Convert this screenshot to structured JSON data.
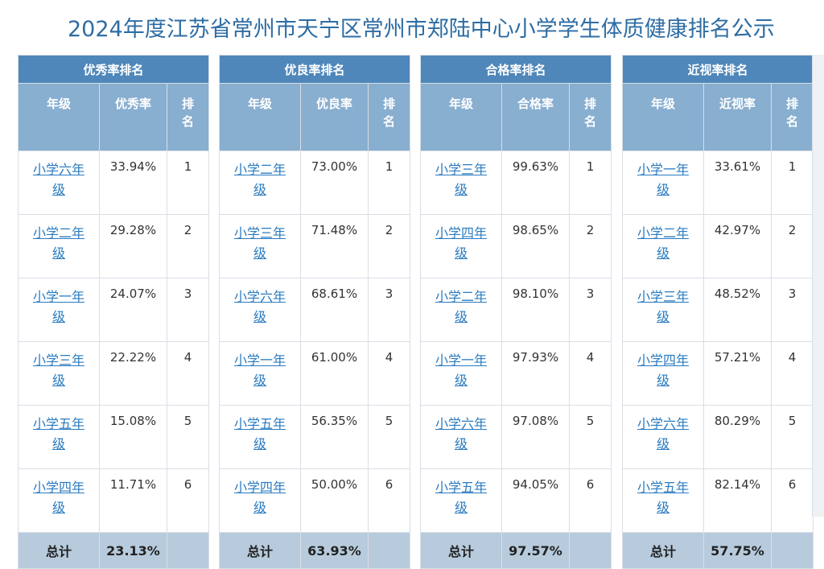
{
  "page_title": "2024年度江苏省常州市天宁区常州市郑陆中心小学学生体质健康排名公示",
  "panels": [
    {
      "title": "优秀率排名",
      "headers": [
        "年级",
        "优秀率",
        "排名"
      ],
      "rows": [
        {
          "grade": "小学六年级",
          "rate": "33.94%",
          "rank": "1"
        },
        {
          "grade": "小学二年级",
          "rate": "29.28%",
          "rank": "2"
        },
        {
          "grade": "小学一年级",
          "rate": "24.07%",
          "rank": "3"
        },
        {
          "grade": "小学三年级",
          "rate": "22.22%",
          "rank": "4"
        },
        {
          "grade": "小学五年级",
          "rate": "15.08%",
          "rank": "5"
        },
        {
          "grade": "小学四年级",
          "rate": "11.71%",
          "rank": "6"
        }
      ],
      "total_label": "总计",
      "total_value": "23.13%"
    },
    {
      "title": "优良率排名",
      "headers": [
        "年级",
        "优良率",
        "排名"
      ],
      "rows": [
        {
          "grade": "小学二年级",
          "rate": "73.00%",
          "rank": "1"
        },
        {
          "grade": "小学三年级",
          "rate": "71.48%",
          "rank": "2"
        },
        {
          "grade": "小学六年级",
          "rate": "68.61%",
          "rank": "3"
        },
        {
          "grade": "小学一年级",
          "rate": "61.00%",
          "rank": "4"
        },
        {
          "grade": "小学五年级",
          "rate": "56.35%",
          "rank": "5"
        },
        {
          "grade": "小学四年级",
          "rate": "50.00%",
          "rank": "6"
        }
      ],
      "total_label": "总计",
      "total_value": "63.93%"
    },
    {
      "title": "合格率排名",
      "headers": [
        "年级",
        "合格率",
        "排名"
      ],
      "rows": [
        {
          "grade": "小学三年级",
          "rate": "99.63%",
          "rank": "1"
        },
        {
          "grade": "小学四年级",
          "rate": "98.65%",
          "rank": "2"
        },
        {
          "grade": "小学二年级",
          "rate": "98.10%",
          "rank": "3"
        },
        {
          "grade": "小学一年级",
          "rate": "97.93%",
          "rank": "4"
        },
        {
          "grade": "小学六年级",
          "rate": "97.08%",
          "rank": "5"
        },
        {
          "grade": "小学五年级",
          "rate": "94.05%",
          "rank": "6"
        }
      ],
      "total_label": "总计",
      "total_value": "97.57%"
    },
    {
      "title": "近视率排名",
      "headers": [
        "年级",
        "近视率",
        "排名"
      ],
      "rows": [
        {
          "grade": "小学一年级",
          "rate": "33.61%",
          "rank": "1"
        },
        {
          "grade": "小学二年级",
          "rate": "42.97%",
          "rank": "2"
        },
        {
          "grade": "小学三年级",
          "rate": "48.52%",
          "rank": "3"
        },
        {
          "grade": "小学四年级",
          "rate": "57.21%",
          "rank": "4"
        },
        {
          "grade": "小学六年级",
          "rate": "80.29%",
          "rank": "5"
        },
        {
          "grade": "小学五年级",
          "rate": "82.14%",
          "rank": "6"
        }
      ],
      "total_label": "总计",
      "total_value": "57.75%"
    }
  ]
}
